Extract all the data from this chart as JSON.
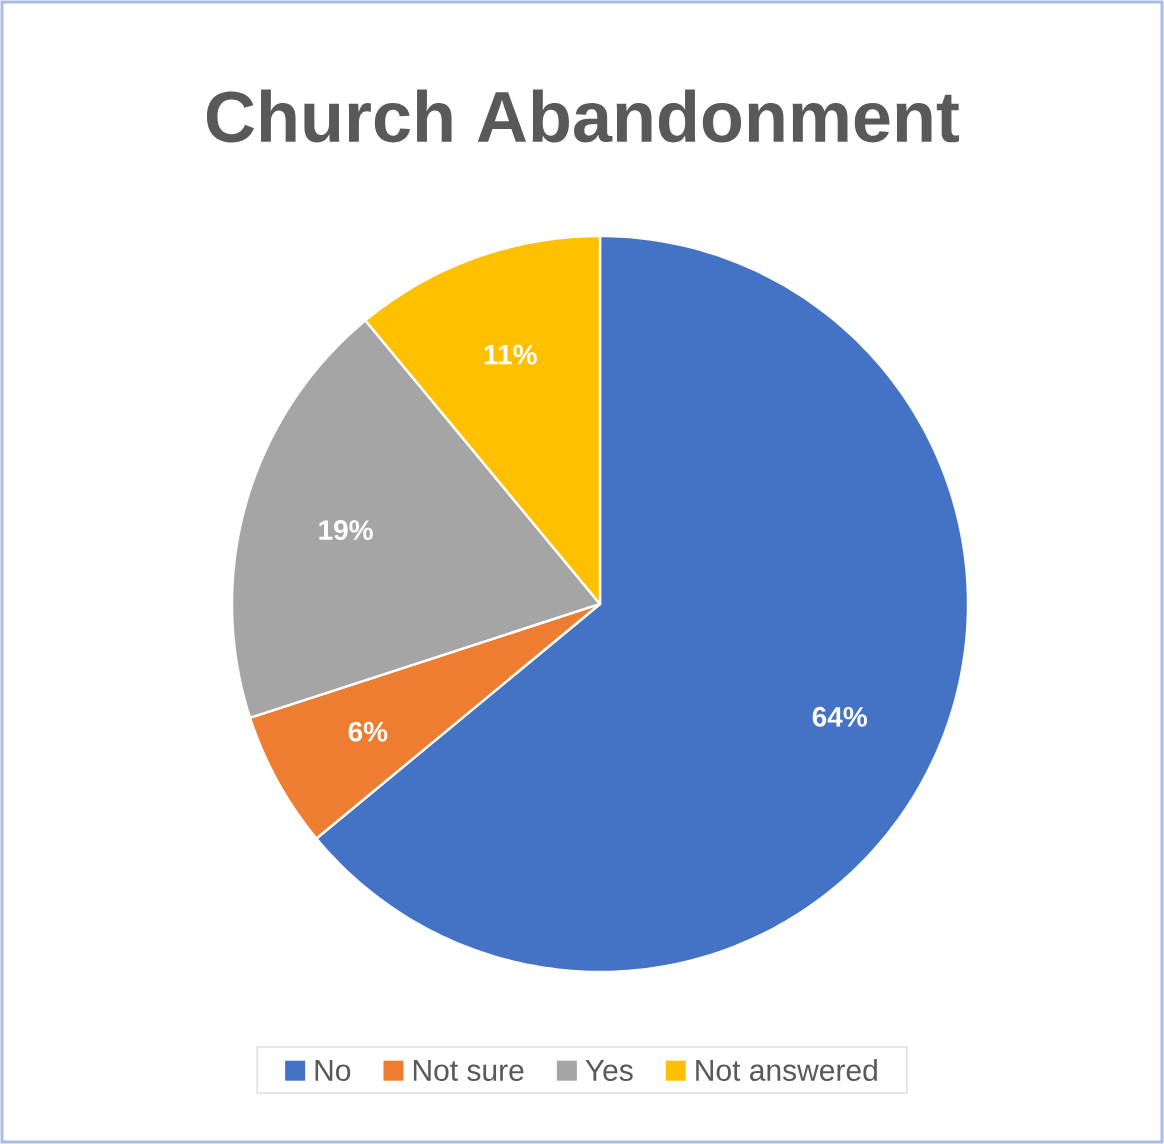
{
  "chart_data": {
    "type": "pie",
    "title": "Church Abandonment",
    "categories": [
      "No",
      "Not sure",
      "Yes",
      "Not answered"
    ],
    "values": [
      64,
      6,
      19,
      11
    ],
    "value_labels": [
      "64%",
      "6%",
      "19%",
      "11%"
    ],
    "colors": [
      "#4472c4",
      "#ed7d31",
      "#a5a5a5",
      "#ffc000"
    ],
    "legend": "bottom"
  }
}
